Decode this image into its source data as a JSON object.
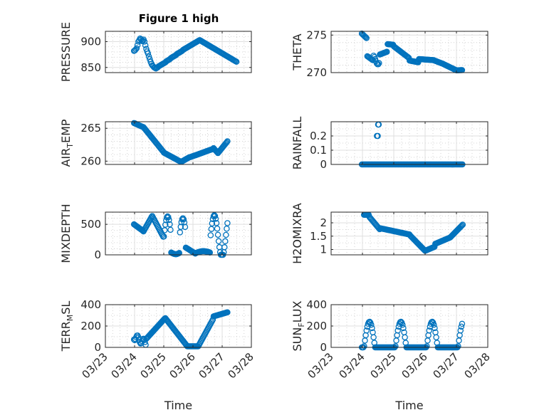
{
  "figure": {
    "title": "Figure 1 high",
    "xlabel": "Time",
    "x_ticks": [
      "03/23",
      "03/24",
      "03/25",
      "03/26",
      "03/27",
      "03/28"
    ]
  },
  "colors": {
    "marker": "#0072bd",
    "axis": "#262626",
    "grid": "#dfdfdf"
  },
  "chart_data": [
    {
      "type": "scatter",
      "ylabel": "PRESSURE",
      "ylim": [
        840,
        920
      ],
      "yticks": [
        850,
        900
      ],
      "yminor": [
        860,
        870,
        880,
        890,
        910
      ],
      "x": [
        0.98,
        1.01,
        1.04,
        1.07,
        1.1,
        1.13,
        1.16,
        1.19,
        1.22,
        1.25,
        1.28,
        1.31,
        1.34,
        1.37,
        1.4,
        1.43,
        1.46,
        1.49,
        1.52,
        1.55,
        1.58,
        1.61,
        1.64,
        1.67,
        1.7,
        1.73,
        1.76,
        1.79,
        1.82,
        1.85,
        1.88,
        1.91,
        1.94,
        1.97,
        2.0,
        2.03,
        2.06,
        2.09,
        2.12,
        2.15,
        2.18,
        2.21,
        2.24,
        2.27,
        2.3,
        2.33,
        2.36,
        2.39,
        2.42,
        2.45,
        2.48,
        2.51,
        2.54,
        2.57,
        2.6,
        2.63,
        2.66,
        2.69,
        2.72,
        2.75,
        2.78,
        2.81,
        2.84,
        2.87,
        2.9,
        2.93,
        2.96,
        2.99,
        3.02,
        3.05,
        3.08,
        3.11,
        3.14,
        3.17,
        3.2,
        3.23,
        3.26,
        3.29,
        3.32,
        3.35,
        3.38,
        3.41,
        3.44,
        3.47,
        3.5,
        3.53,
        3.56,
        3.59,
        3.62,
        3.65,
        3.68,
        3.71,
        3.74,
        3.77,
        3.8,
        3.83,
        3.86,
        3.89,
        3.92,
        3.95,
        3.98,
        4.01,
        4.04,
        4.07,
        4.1,
        4.13,
        4.16,
        4.19,
        4.22,
        4.25,
        4.28,
        4.31,
        4.34,
        4.37,
        4.4,
        4.43,
        4.46,
        4.49
      ],
      "y": [
        882,
        883,
        885,
        887,
        893,
        900,
        903,
        906,
        904,
        901,
        902,
        904,
        900,
        893,
        886,
        881,
        877,
        871,
        866,
        861,
        857,
        854,
        852,
        850,
        849,
        848,
        849,
        850,
        852,
        853,
        854,
        855,
        856,
        857,
        858,
        859,
        860,
        862,
        863,
        864,
        865,
        866,
        868,
        869,
        870,
        871,
        872,
        873,
        874,
        876,
        877,
        878,
        879,
        880,
        881,
        882,
        884,
        885,
        886,
        887,
        888,
        889,
        890,
        891,
        892,
        893,
        894,
        895,
        896,
        897,
        898,
        899,
        900,
        901,
        902,
        903,
        902,
        901,
        900,
        899,
        898,
        897,
        896,
        895,
        894,
        893,
        892,
        891,
        890,
        889,
        888,
        887,
        886,
        885,
        884,
        883,
        882,
        881,
        880,
        879,
        878,
        877,
        876,
        875,
        874,
        873,
        872,
        871,
        870,
        869,
        868,
        867,
        866,
        865,
        864,
        863,
        862,
        861
      ]
    },
    {
      "type": "scatter",
      "ylabel": "THETA",
      "ylim": [
        270,
        275.5
      ],
      "yticks": [
        270,
        275
      ],
      "yminor": [
        271,
        272,
        273,
        274
      ],
      "x": [],
      "y": []
    },
    {
      "type": "scatter",
      "ylabel": "AIR_TEMP",
      "ylim": [
        259.5,
        266
      ],
      "yticks": [
        260,
        265
      ],
      "yminor": [
        261,
        262,
        263,
        264
      ],
      "x": [],
      "y": []
    },
    {
      "type": "scatter",
      "ylabel": "RAINFALL",
      "ylim": [
        0,
        0.3
      ],
      "yticks": [
        0,
        0.1,
        0.2
      ],
      "ytick_labels": [
        "0",
        "0.1",
        "0.2"
      ],
      "yminor": [
        0.05,
        0.15,
        0.25
      ],
      "x": [],
      "y": []
    },
    {
      "type": "scatter",
      "ylabel": "MIXDEPTH",
      "ylim": [
        0,
        700
      ],
      "yticks": [
        0,
        500
      ],
      "yminor": [
        100,
        200,
        300,
        400,
        600
      ],
      "x": [],
      "y": []
    },
    {
      "type": "scatter",
      "ylabel": "H2OMIXRA",
      "ylim": [
        0.8,
        2.4
      ],
      "yticks": [
        1,
        1.5,
        2
      ],
      "ytick_labels": [
        "1",
        "1.5",
        "2"
      ],
      "yminor": [
        1.25,
        1.75,
        2.25
      ],
      "x": [],
      "y": []
    },
    {
      "type": "scatter",
      "ylabel": "TERR_MSL",
      "ylim": [
        0,
        400
      ],
      "yticks": [
        0,
        200,
        400
      ],
      "yminor": [
        100,
        300
      ],
      "x": [],
      "y": []
    },
    {
      "type": "scatter",
      "ylabel": "SUN_FLUX",
      "ylim": [
        0,
        400
      ],
      "yticks": [
        0,
        200,
        400
      ],
      "yminor": [
        100,
        300
      ],
      "x": [],
      "y": []
    }
  ]
}
